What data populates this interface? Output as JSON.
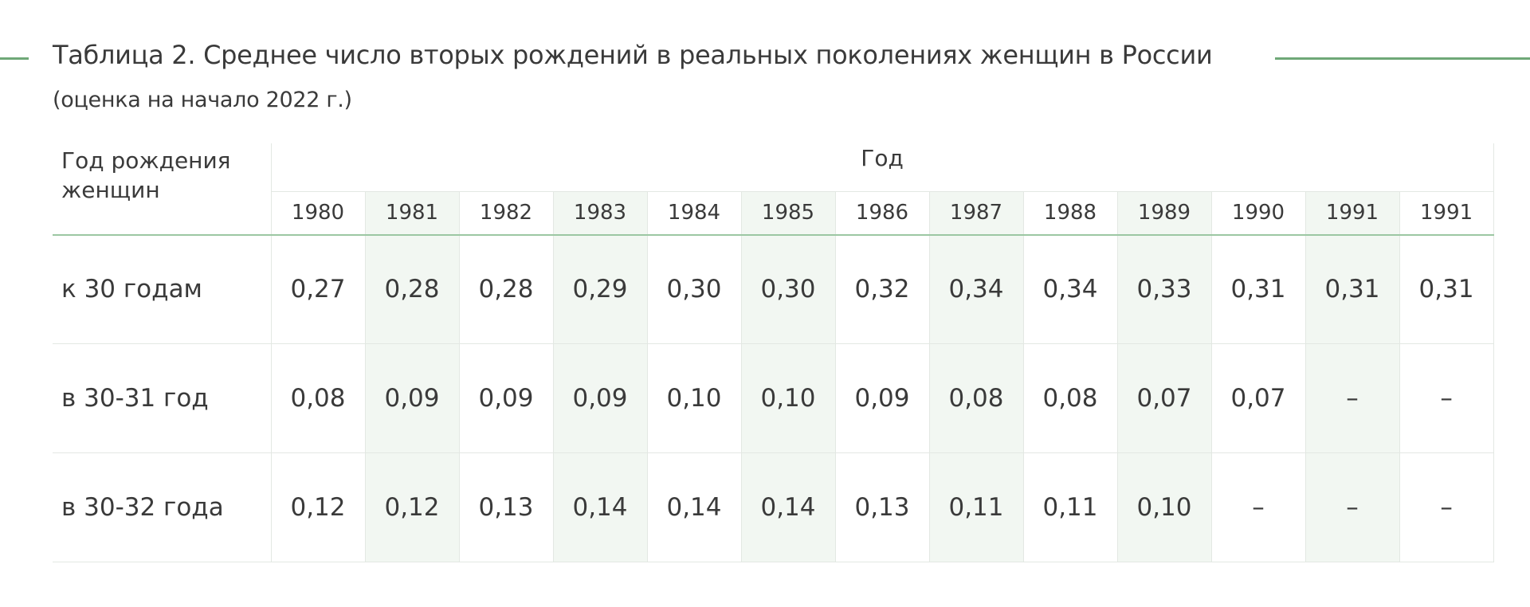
{
  "title": "Таблица 2. Среднее число вторых рождений в реальных поколениях женщин в России",
  "subtitle": "(оценка на начало 2022 г.)",
  "accent_color": "#6fa878",
  "shade_color": "#f2f7f2",
  "table": {
    "label_header": "Год рождения женщин",
    "group_header": "Год",
    "years": [
      "1980",
      "1981",
      "1982",
      "1983",
      "1984",
      "1985",
      "1986",
      "1987",
      "1988",
      "1989",
      "1990",
      "1991",
      "1991"
    ],
    "rows": [
      {
        "label": "к 30 годам",
        "values": [
          "0,27",
          "0,28",
          "0,28",
          "0,29",
          "0,30",
          "0,30",
          "0,32",
          "0,34",
          "0,34",
          "0,33",
          "0,31",
          "0,31",
          "0,31"
        ]
      },
      {
        "label": "в 30-31 год",
        "values": [
          "0,08",
          "0,09",
          "0,09",
          "0,09",
          "0,10",
          "0,10",
          "0,09",
          "0,08",
          "0,08",
          "0,07",
          "0,07",
          "–",
          "–"
        ]
      },
      {
        "label": "в 30-32 года",
        "values": [
          "0,12",
          "0,12",
          "0,13",
          "0,14",
          "0,14",
          "0,14",
          "0,13",
          "0,11",
          "0,11",
          "0,10",
          "–",
          "–",
          "–"
        ]
      }
    ]
  }
}
